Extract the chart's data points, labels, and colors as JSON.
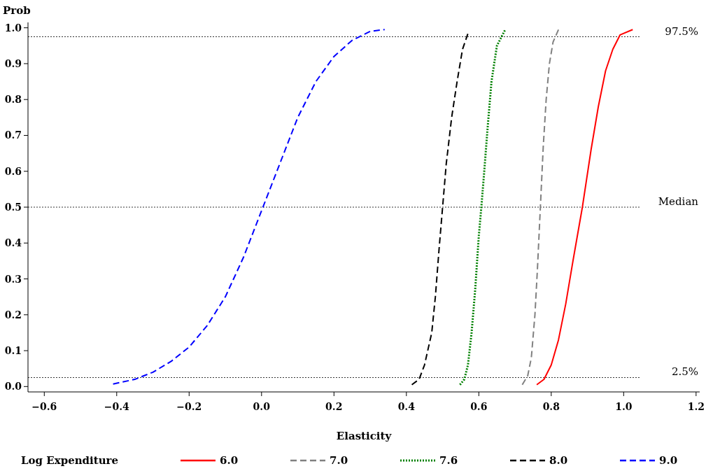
{
  "chart_data": {
    "type": "line",
    "xlabel": "Elasticity",
    "ylabel": "Prob",
    "legend_title": "Log Expenditure",
    "legend": "bottom",
    "grid": false,
    "xlim": [
      -0.645,
      1.21
    ],
    "ylim": [
      -0.015,
      1.015
    ],
    "xticks": [
      {
        "value": -0.6,
        "label": "−0.6"
      },
      {
        "value": -0.4,
        "label": "−0.4"
      },
      {
        "value": -0.2,
        "label": "−0.2"
      },
      {
        "value": 0,
        "label": "0.0"
      },
      0.2,
      0.4,
      0.6,
      0.8,
      {
        "value": 1.0,
        "label": "1.0"
      },
      1.2
    ],
    "yticks": [
      {
        "value": 0,
        "label": "0.0"
      },
      0.1,
      0.2,
      0.3,
      0.4,
      0.5,
      0.6,
      0.7,
      0.8,
      0.9,
      {
        "value": 1,
        "label": "1.0"
      }
    ],
    "ref_lines": [
      {
        "axis": "y",
        "value": 0.975,
        "label": "97.5%",
        "color": "#000000",
        "line_style": "dotted"
      },
      {
        "axis": "y",
        "value": 0.5,
        "label": "Median",
        "color": "#000000",
        "line_style": "dotted"
      },
      {
        "axis": "y",
        "value": 0.025,
        "label": "2.5%",
        "color": "#000000",
        "line_style": "dotted"
      }
    ],
    "series": [
      {
        "name": "6.0",
        "color": "#ff0000",
        "line_style": "solid",
        "x": [
          0.76,
          0.78,
          0.8,
          0.82,
          0.84,
          0.86,
          0.886,
          0.91,
          0.93,
          0.95,
          0.97,
          0.99,
          1.025
        ],
        "values": [
          0.005,
          0.02,
          0.06,
          0.13,
          0.23,
          0.35,
          0.5,
          0.66,
          0.78,
          0.88,
          0.94,
          0.98,
          0.995
        ]
      },
      {
        "name": "7.0",
        "color": "#808080",
        "line_style": "dashed",
        "x": [
          0.72,
          0.735,
          0.745,
          0.755,
          0.762,
          0.77,
          0.778,
          0.786,
          0.795,
          0.805,
          0.82
        ],
        "values": [
          0.005,
          0.03,
          0.08,
          0.2,
          0.33,
          0.5,
          0.67,
          0.8,
          0.9,
          0.96,
          0.995
        ]
      },
      {
        "name": "7.6",
        "color": "#008000",
        "line_style": "dotted",
        "x": [
          0.548,
          0.56,
          0.57,
          0.58,
          0.59,
          0.6,
          0.607,
          0.615,
          0.625,
          0.635,
          0.65,
          0.673
        ],
        "values": [
          0.005,
          0.02,
          0.06,
          0.15,
          0.27,
          0.42,
          0.5,
          0.6,
          0.73,
          0.85,
          0.95,
          0.995
        ]
      },
      {
        "name": "8.0",
        "color": "#000000",
        "line_style": "dashed",
        "x": [
          0.415,
          0.435,
          0.45,
          0.47,
          0.48,
          0.49,
          0.5,
          0.51,
          0.525,
          0.54,
          0.555,
          0.572
        ],
        "values": [
          0.005,
          0.02,
          0.06,
          0.15,
          0.25,
          0.38,
          0.5,
          0.62,
          0.75,
          0.85,
          0.94,
          0.99
        ]
      },
      {
        "name": "9.0",
        "color": "#0000ff",
        "line_style": "dashed",
        "x": [
          -0.41,
          -0.35,
          -0.3,
          -0.25,
          -0.2,
          -0.15,
          -0.1,
          -0.05,
          0,
          0.05,
          0.1,
          0.15,
          0.2,
          0.25,
          0.3,
          0.34
        ],
        "values": [
          0.007,
          0.02,
          0.04,
          0.07,
          0.11,
          0.17,
          0.25,
          0.36,
          0.49,
          0.62,
          0.75,
          0.85,
          0.92,
          0.965,
          0.99,
          0.995
        ]
      }
    ]
  }
}
